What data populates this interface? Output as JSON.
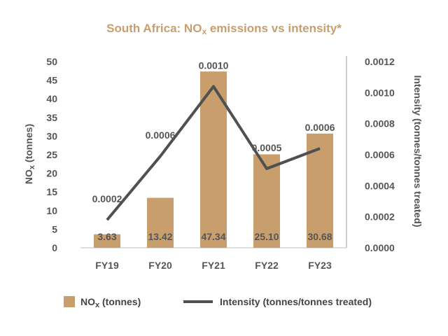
{
  "colors": {
    "bar": "#c89f6c",
    "line": "#505050",
    "title": "#c89f6c",
    "axis": "#bfbfbf",
    "text": "#555555"
  },
  "chart_data": {
    "type": "bar+line",
    "title_main": "South Africa: NO",
    "title_sub": "x",
    "title_rest": " emissions vs intensity*",
    "categories": [
      "FY19",
      "FY20",
      "FY21",
      "FY22",
      "FY23"
    ],
    "series": [
      {
        "name": "NOx (tonnes)",
        "legend_main": "NO",
        "legend_sub": "x",
        "legend_rest": " (tonnes)",
        "type": "bar",
        "axis": "left",
        "values": [
          3.63,
          13.42,
          47.34,
          25.1,
          30.68
        ],
        "labels": [
          "3.63",
          "13.42",
          "47.34",
          "25.10",
          "30.68"
        ]
      },
      {
        "name": "Intensity (tonnes/tonnes treated)",
        "legend": "Intensity (tonnes/tonnes treated)",
        "type": "line",
        "axis": "right",
        "values": [
          0.00018,
          0.00059,
          0.00104,
          0.00051,
          0.00064
        ],
        "labels": [
          "0.0002",
          "0.0006",
          "0.0010",
          "0.0005",
          "0.0006"
        ]
      }
    ],
    "y_left": {
      "label_main": "NO",
      "label_sub": "x",
      "label_rest": " (tonnes)",
      "ylim": [
        0,
        50
      ],
      "ticks": [
        "0",
        "5",
        "10",
        "15",
        "20",
        "25",
        "30",
        "35",
        "40",
        "45",
        "50"
      ]
    },
    "y_right": {
      "label": "Intensity (tonnes/tonnes treated)",
      "ylim": [
        0,
        0.0012
      ],
      "ticks": [
        "0.0000",
        "0.0002",
        "0.0004",
        "0.0006",
        "0.0008",
        "0.0010",
        "0.0012"
      ]
    },
    "legend_position": "bottom",
    "grid": false
  }
}
